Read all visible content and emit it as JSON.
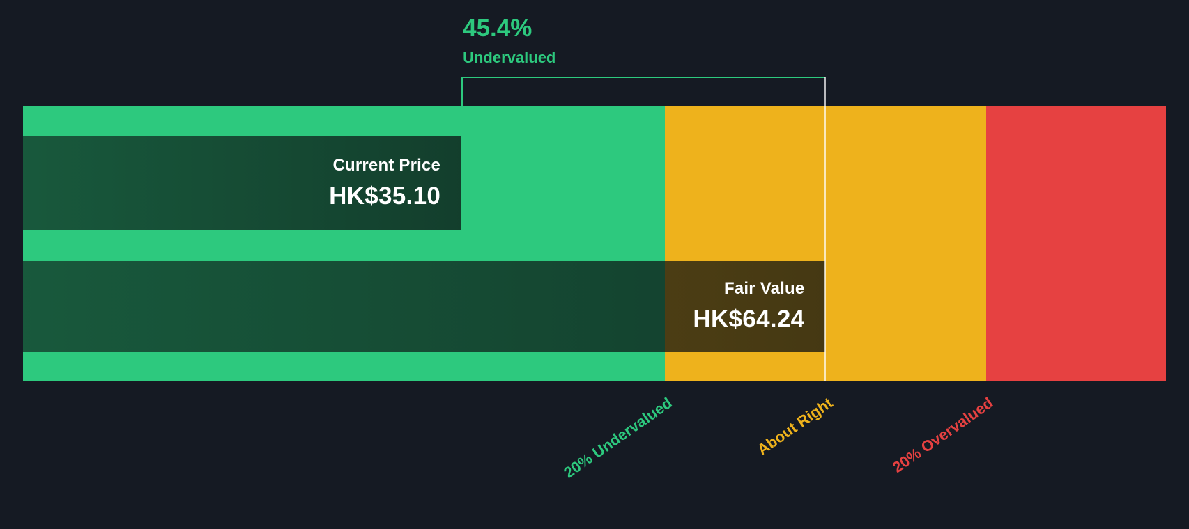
{
  "colors": {
    "background": "#151a23",
    "undervalued_green": "#2dc97e",
    "about_right_amber": "#eeb21c",
    "overvalued_red": "#e64141",
    "value_text": "#ffffff",
    "fair_value_line": "rgba(255,255,255,0.7)"
  },
  "chart_data": {
    "type": "bar",
    "headline": {
      "percent": "45.4%",
      "label": "Undervalued",
      "color": "#2dc97e"
    },
    "bars": [
      {
        "label": "Current Price",
        "value": 35.1,
        "value_label": "HK$35.10"
      },
      {
        "label": "Fair Value",
        "value": 64.24,
        "value_label": "HK$64.24"
      }
    ],
    "zones": [
      {
        "label": "20% Undervalued",
        "color": "#2dc97e",
        "range": [
          0,
          51.39
        ]
      },
      {
        "label": "About Right",
        "color": "#eeb21c",
        "range": [
          51.39,
          77.09
        ]
      },
      {
        "label": "20% Overvalued",
        "color": "#e64141",
        "range": [
          77.09,
          91.5
        ]
      }
    ],
    "axis": {
      "min": 0,
      "max": 91.5
    },
    "legend": "none",
    "grid": false
  }
}
